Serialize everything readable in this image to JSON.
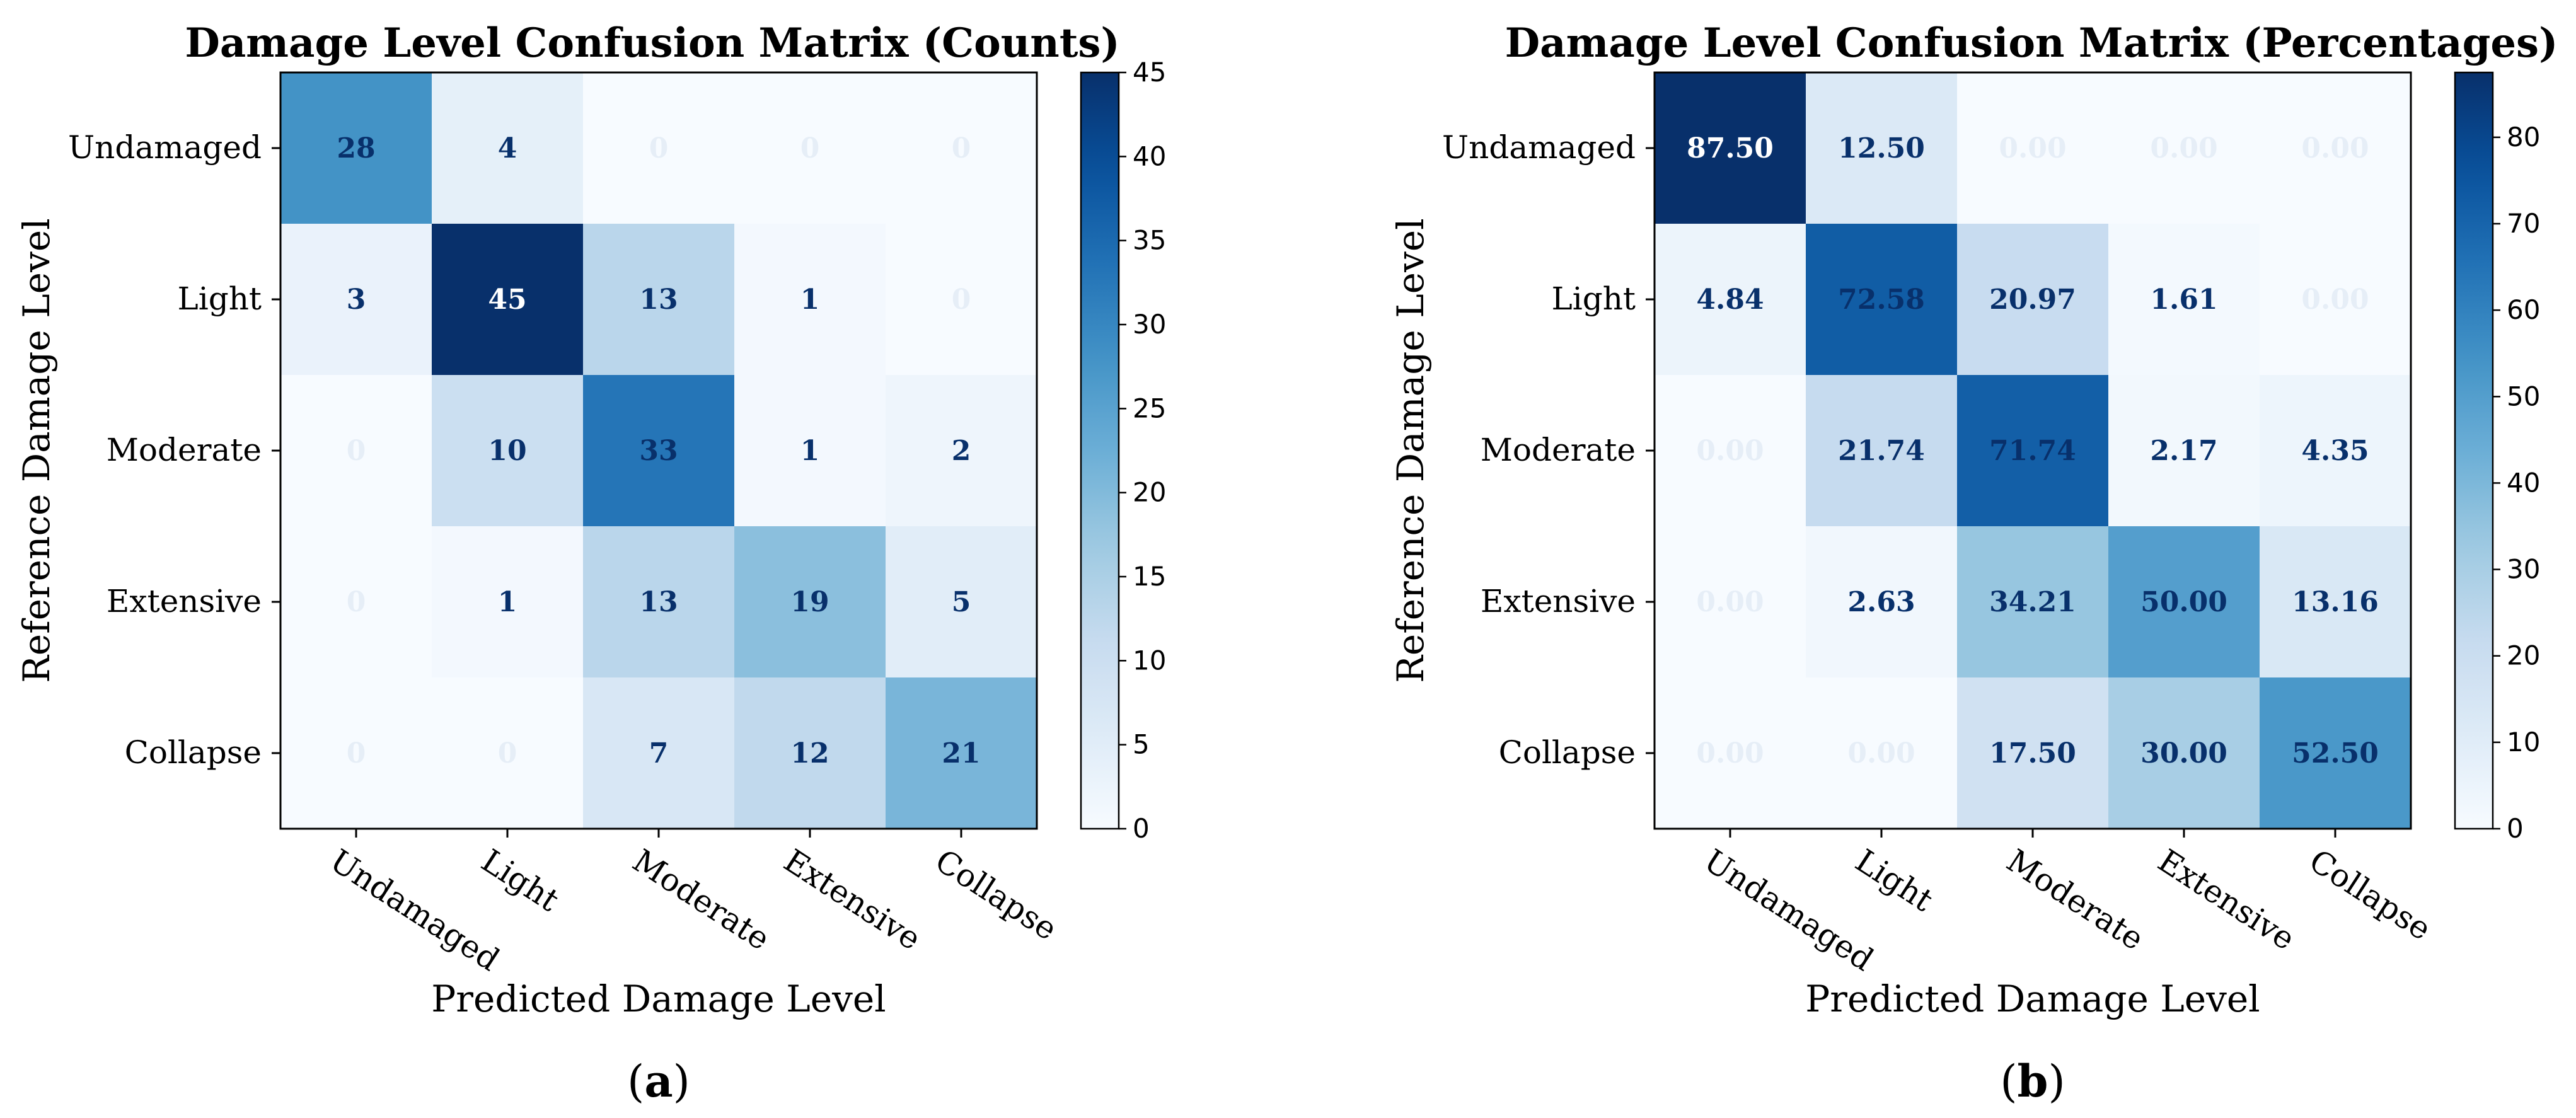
{
  "chart_data": [
    {
      "type": "heatmap",
      "id": "a",
      "panel_label": "a",
      "title": "Damage Level Confusion Matrix (Counts)",
      "xlabel": "Predicted Damage Level",
      "ylabel": "Reference Damage Level",
      "x_categories": [
        "Undamaged",
        "Light",
        "Moderate",
        "Extensive",
        "Collapse"
      ],
      "y_categories": [
        "Undamaged",
        "Light",
        "Moderate",
        "Extensive",
        "Collapse"
      ],
      "values": [
        [
          28,
          4,
          0,
          0,
          0
        ],
        [
          3,
          45,
          13,
          1,
          0
        ],
        [
          0,
          10,
          33,
          1,
          2
        ],
        [
          0,
          1,
          13,
          19,
          5
        ],
        [
          0,
          0,
          7,
          12,
          21
        ]
      ],
      "value_labels": [
        [
          "28",
          "4",
          "0",
          "0",
          "0"
        ],
        [
          "3",
          "45",
          "13",
          "1",
          "0"
        ],
        [
          "0",
          "10",
          "33",
          "1",
          "2"
        ],
        [
          "0",
          "1",
          "13",
          "19",
          "5"
        ],
        [
          "0",
          "0",
          "7",
          "12",
          "21"
        ]
      ],
      "vmin": 0,
      "vmax": 45,
      "colorbar_ticks": [
        0,
        5,
        10,
        15,
        20,
        25,
        30,
        35,
        40,
        45
      ],
      "colormap": "Blues"
    },
    {
      "type": "heatmap",
      "id": "b",
      "panel_label": "b",
      "title": "Damage Level Confusion Matrix (Percentages)",
      "xlabel": "Predicted Damage Level",
      "ylabel": "Reference Damage Level",
      "x_categories": [
        "Undamaged",
        "Light",
        "Moderate",
        "Extensive",
        "Collapse"
      ],
      "y_categories": [
        "Undamaged",
        "Light",
        "Moderate",
        "Extensive",
        "Collapse"
      ],
      "values": [
        [
          87.5,
          12.5,
          0.0,
          0.0,
          0.0
        ],
        [
          4.84,
          72.58,
          20.97,
          1.61,
          0.0
        ],
        [
          0.0,
          21.74,
          71.74,
          2.17,
          4.35
        ],
        [
          0.0,
          2.63,
          34.21,
          50.0,
          13.16
        ],
        [
          0.0,
          0.0,
          17.5,
          30.0,
          52.5
        ]
      ],
      "value_labels": [
        [
          "87.50",
          "12.50",
          "0.00",
          "0.00",
          "0.00"
        ],
        [
          "4.84",
          "72.58",
          "20.97",
          "1.61",
          "0.00"
        ],
        [
          "0.00",
          "21.74",
          "71.74",
          "2.17",
          "4.35"
        ],
        [
          "0.00",
          "2.63",
          "34.21",
          "50.00",
          "13.16"
        ],
        [
          "0.00",
          "0.00",
          "17.50",
          "30.00",
          "52.50"
        ]
      ],
      "vmin": 0,
      "vmax": 87.5,
      "colorbar_ticks": [
        0,
        10,
        20,
        30,
        40,
        50,
        60,
        70,
        80
      ],
      "colormap": "Blues"
    }
  ],
  "colors": {
    "text_dark": "#08306b",
    "text_light": "#ffffff",
    "axis": "#000000"
  }
}
